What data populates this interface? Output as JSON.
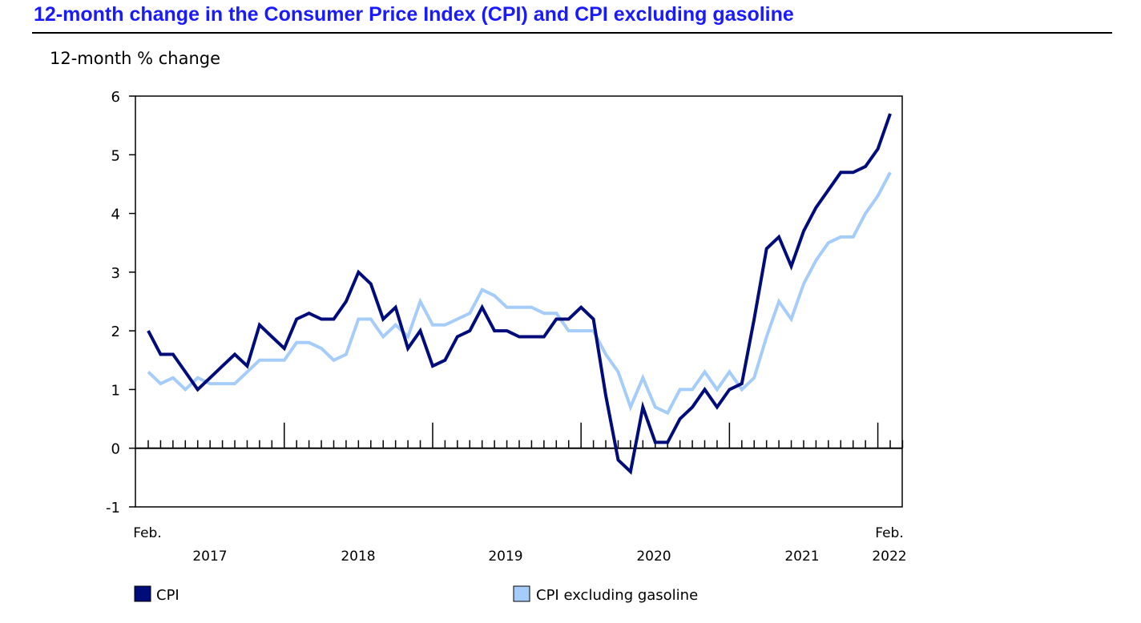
{
  "chart_data": {
    "type": "line",
    "title": "12-month change in the Consumer Price Index (CPI) and CPI excluding gasoline",
    "ylabel": "12-month % change",
    "xlabel": "",
    "ylim": [
      -1,
      6
    ],
    "yticks": [
      "-1",
      "0",
      "1",
      "2",
      "3",
      "4",
      "5",
      "6"
    ],
    "x_start_label": "Feb.",
    "x_end_label": "Feb.",
    "year_labels": [
      "2017",
      "2018",
      "2019",
      "2020",
      "2021",
      "2022"
    ],
    "x_range": [
      "2017-02",
      "2022-02"
    ],
    "frequency": "monthly",
    "legend_position": "bottom",
    "series": [
      {
        "name": "CPI",
        "color": "#000c7a",
        "values": [
          2.0,
          1.6,
          1.6,
          1.3,
          1.0,
          1.2,
          1.4,
          1.6,
          1.4,
          2.1,
          1.9,
          1.7,
          2.2,
          2.3,
          2.2,
          2.2,
          2.5,
          3.0,
          2.8,
          2.2,
          2.4,
          1.7,
          2.0,
          1.4,
          1.5,
          1.9,
          2.0,
          2.4,
          2.0,
          2.0,
          1.9,
          1.9,
          1.9,
          2.2,
          2.2,
          2.4,
          2.2,
          0.9,
          -0.2,
          -0.4,
          0.7,
          0.1,
          0.1,
          0.5,
          0.7,
          1.0,
          0.7,
          1.0,
          1.1,
          2.2,
          3.4,
          3.6,
          3.1,
          3.7,
          4.1,
          4.4,
          4.7,
          4.7,
          4.8,
          5.1,
          5.7
        ]
      },
      {
        "name": "CPI excluding gasoline",
        "color": "#a6cdfa",
        "values": [
          1.3,
          1.1,
          1.2,
          1.0,
          1.2,
          1.1,
          1.1,
          1.1,
          1.3,
          1.5,
          1.5,
          1.5,
          1.8,
          1.8,
          1.7,
          1.5,
          1.6,
          2.2,
          2.2,
          1.9,
          2.1,
          1.9,
          2.5,
          2.1,
          2.1,
          2.2,
          2.3,
          2.7,
          2.6,
          2.4,
          2.4,
          2.4,
          2.3,
          2.3,
          2.0,
          2.0,
          2.0,
          1.6,
          1.3,
          0.7,
          1.2,
          0.7,
          0.6,
          1.0,
          1.0,
          1.3,
          1.0,
          1.3,
          1.0,
          1.2,
          1.9,
          2.5,
          2.2,
          2.8,
          3.2,
          3.5,
          3.6,
          3.6,
          4.0,
          4.3,
          4.7
        ]
      }
    ]
  }
}
